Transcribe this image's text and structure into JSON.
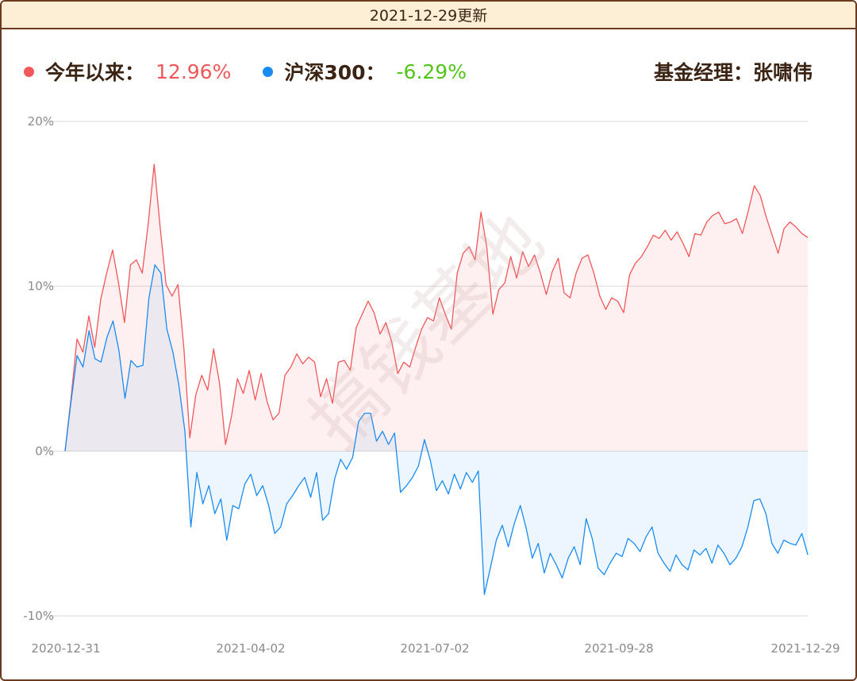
{
  "header": {
    "title": "2021-12-29更新"
  },
  "legend": {
    "fund": {
      "label": "今年以来：",
      "value": "12.96%",
      "color": "#f0575a",
      "value_color": "#f0575a"
    },
    "index": {
      "label": "沪深300：",
      "value": "-6.29%",
      "color": "#1a8cf0",
      "value_color": "#52c41a"
    },
    "manager_label": "基金经理：",
    "manager_name": "张啸伟"
  },
  "watermark": "搞钱基地",
  "chart_data": {
    "type": "area",
    "title": "",
    "xlabel": "",
    "ylabel": "",
    "x_ticks": [
      "2020-12-31",
      "2021-04-02",
      "2021-07-02",
      "2021-09-28",
      "2021-12-29"
    ],
    "y_ticks": [
      "20%",
      "10%",
      "0%",
      "-10%"
    ],
    "ylim": [
      -10,
      20
    ],
    "grid": true,
    "series": [
      {
        "name": "今年以来",
        "color": "#f0575a",
        "values": [
          0,
          3.2,
          6.8,
          6.0,
          8.2,
          6.3,
          9.2,
          10.8,
          12.2,
          10.2,
          7.8,
          11.3,
          11.6,
          10.8,
          13.8,
          17.4,
          13.6,
          10.1,
          9.4,
          10.1,
          6.2,
          0.8,
          3.4,
          4.6,
          3.7,
          6.2,
          4.1,
          0.4,
          2.1,
          4.4,
          3.5,
          4.9,
          3.1,
          4.7,
          3.0,
          1.9,
          2.3,
          4.6,
          5.1,
          5.9,
          5.3,
          5.7,
          5.4,
          3.3,
          4.4,
          2.9,
          5.4,
          5.5,
          4.9,
          7.5,
          8.3,
          9.1,
          8.4,
          7.1,
          7.8,
          6.6,
          4.7,
          5.4,
          5.1,
          6.3,
          7.4,
          8.1,
          7.9,
          9.3,
          8.3,
          7.4,
          10.8,
          12.0,
          12.4,
          11.6,
          14.5,
          12.3,
          8.3,
          9.8,
          10.2,
          11.8,
          10.5,
          12.1,
          11.2,
          11.9,
          10.8,
          9.5,
          10.9,
          11.7,
          9.6,
          9.3,
          10.8,
          11.7,
          11.9,
          10.8,
          9.4,
          8.6,
          9.3,
          9.1,
          8.4,
          10.7,
          11.4,
          11.8,
          12.4,
          13.1,
          12.9,
          13.4,
          12.8,
          13.3,
          12.6,
          11.8,
          13.2,
          13.1,
          13.9,
          14.3,
          14.5,
          13.8,
          13.9,
          14.1,
          13.2,
          14.6,
          16.1,
          15.5,
          14.2,
          13.1,
          12.0,
          13.5,
          13.9,
          13.6,
          13.2,
          12.96
        ]
      },
      {
        "name": "沪深300",
        "color": "#1a8cf0",
        "values": [
          0,
          3.0,
          5.8,
          5.1,
          7.3,
          5.6,
          5.4,
          6.9,
          7.9,
          6.1,
          3.2,
          5.5,
          5.1,
          5.2,
          9.3,
          11.3,
          10.8,
          7.4,
          6.0,
          4.0,
          1.2,
          -4.6,
          -1.3,
          -3.2,
          -2.1,
          -3.8,
          -2.9,
          -5.4,
          -3.3,
          -3.5,
          -2.0,
          -1.4,
          -2.7,
          -2.1,
          -3.3,
          -5.0,
          -4.6,
          -3.2,
          -2.7,
          -2.1,
          -1.6,
          -2.8,
          -1.3,
          -4.2,
          -3.8,
          -1.7,
          -0.5,
          -1.1,
          -0.4,
          1.8,
          2.3,
          2.3,
          0.6,
          1.2,
          0.4,
          1.1,
          -2.5,
          -2.1,
          -1.6,
          -0.9,
          0.7,
          -0.6,
          -2.4,
          -1.8,
          -2.6,
          -1.4,
          -2.3,
          -1.3,
          -1.9,
          -1.2,
          -8.7,
          -7.1,
          -5.4,
          -4.5,
          -5.8,
          -4.4,
          -3.3,
          -4.7,
          -6.5,
          -5.6,
          -7.4,
          -6.2,
          -6.9,
          -7.7,
          -6.5,
          -5.8,
          -6.9,
          -4.1,
          -5.3,
          -7.1,
          -7.5,
          -6.8,
          -6.2,
          -6.4,
          -5.3,
          -5.6,
          -6.1,
          -5.2,
          -4.6,
          -6.2,
          -6.8,
          -7.3,
          -6.3,
          -6.9,
          -7.2,
          -6.0,
          -6.3,
          -5.9,
          -6.8,
          -5.7,
          -6.2,
          -6.9,
          -6.5,
          -5.8,
          -4.6,
          -3.0,
          -2.9,
          -3.8,
          -5.6,
          -6.2,
          -5.4,
          -5.6,
          -5.7,
          -5.0,
          -6.29
        ]
      }
    ]
  }
}
